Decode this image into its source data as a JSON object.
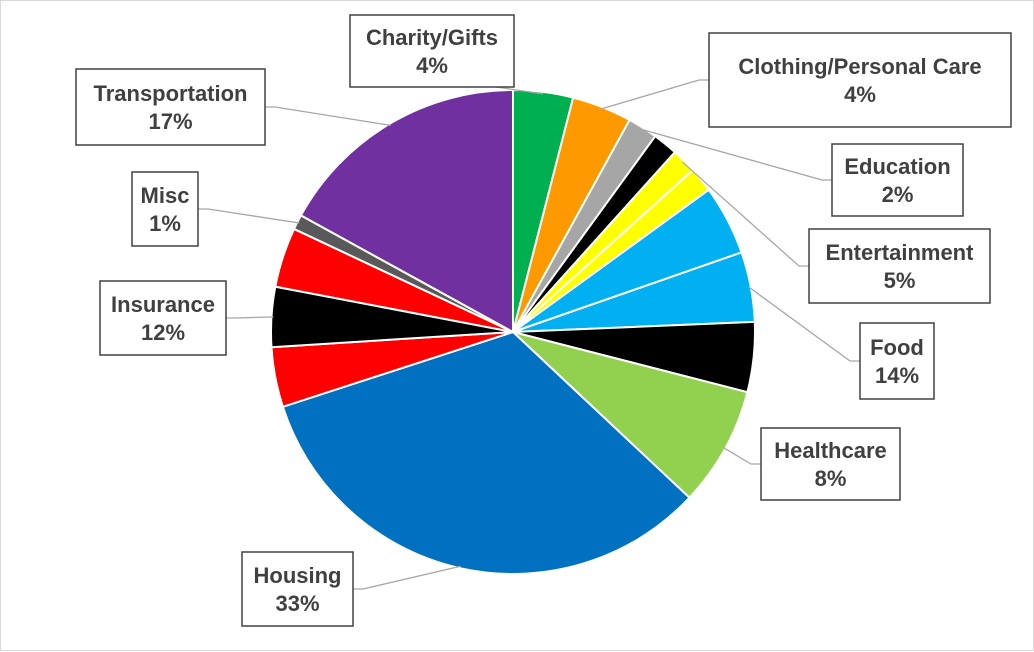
{
  "chart_data": {
    "type": "pie",
    "title": "",
    "slices": [
      {
        "name": "Charity/Gifts",
        "label": "4%",
        "value": 4,
        "colors": [
          "#00b050"
        ]
      },
      {
        "name": "Clothing/Personal Care",
        "label": "4%",
        "value": 4,
        "colors": [
          "#ff9900"
        ]
      },
      {
        "name": "Education",
        "label": "2%",
        "value": 2,
        "colors": [
          "#a6a6a6"
        ]
      },
      {
        "name": "Entertainment",
        "label": "5%",
        "value": 5,
        "colors": [
          "#000000",
          "#ffff00",
          "#ffff00"
        ]
      },
      {
        "name": "Food",
        "label": "14%",
        "value": 14,
        "colors": [
          "#00b0f0",
          "#00b0f0",
          "#000000"
        ]
      },
      {
        "name": "Healthcare",
        "label": "8%",
        "value": 8,
        "colors": [
          "#92d050"
        ]
      },
      {
        "name": "Housing",
        "label": "33%",
        "value": 33,
        "colors": [
          "#0070c0"
        ]
      },
      {
        "name": "Insurance",
        "label": "12%",
        "value": 12,
        "colors": [
          "#ff0000",
          "#000000",
          "#ff0000"
        ]
      },
      {
        "name": "Misc",
        "label": "1%",
        "value": 1,
        "colors": [
          "#595959"
        ]
      },
      {
        "name": "Transportation",
        "label": "17%",
        "value": 17,
        "colors": [
          "#7030a0"
        ]
      }
    ]
  }
}
